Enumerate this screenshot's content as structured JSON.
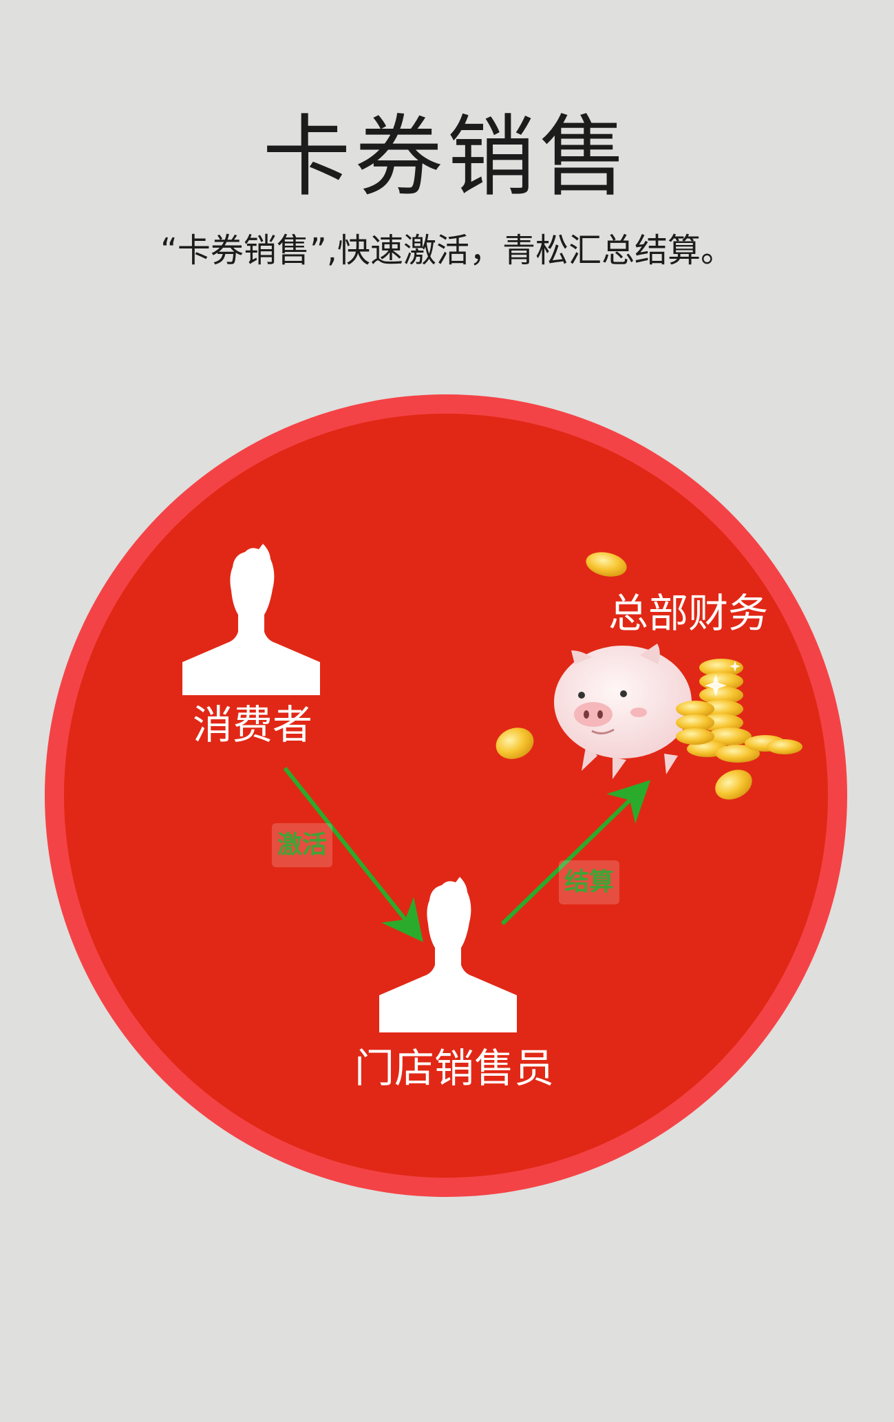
{
  "header": {
    "title": "卡券销售",
    "subtitle": "“卡券销售”,快速激活，青松汇总结算。"
  },
  "diagram": {
    "nodes": {
      "consumer": {
        "label": "消费者",
        "icon": "person-icon"
      },
      "store_clerk": {
        "label": "门店销售员",
        "icon": "person-icon"
      },
      "hq_finance": {
        "label": "总部财务",
        "icon": "piggy-bank-coins-icon"
      }
    },
    "edges": {
      "activate": {
        "label": "激活",
        "from": "consumer",
        "to": "store_clerk"
      },
      "settle": {
        "label": "结算",
        "from": "store_clerk",
        "to": "hq_finance"
      }
    },
    "colors": {
      "background": "#dfdfdd",
      "circle_ring": "#f44346",
      "circle_fill": "#e12816",
      "arrow": "#2bab2b",
      "edge_label": "#3ea535",
      "coin": "#f7c531"
    }
  }
}
